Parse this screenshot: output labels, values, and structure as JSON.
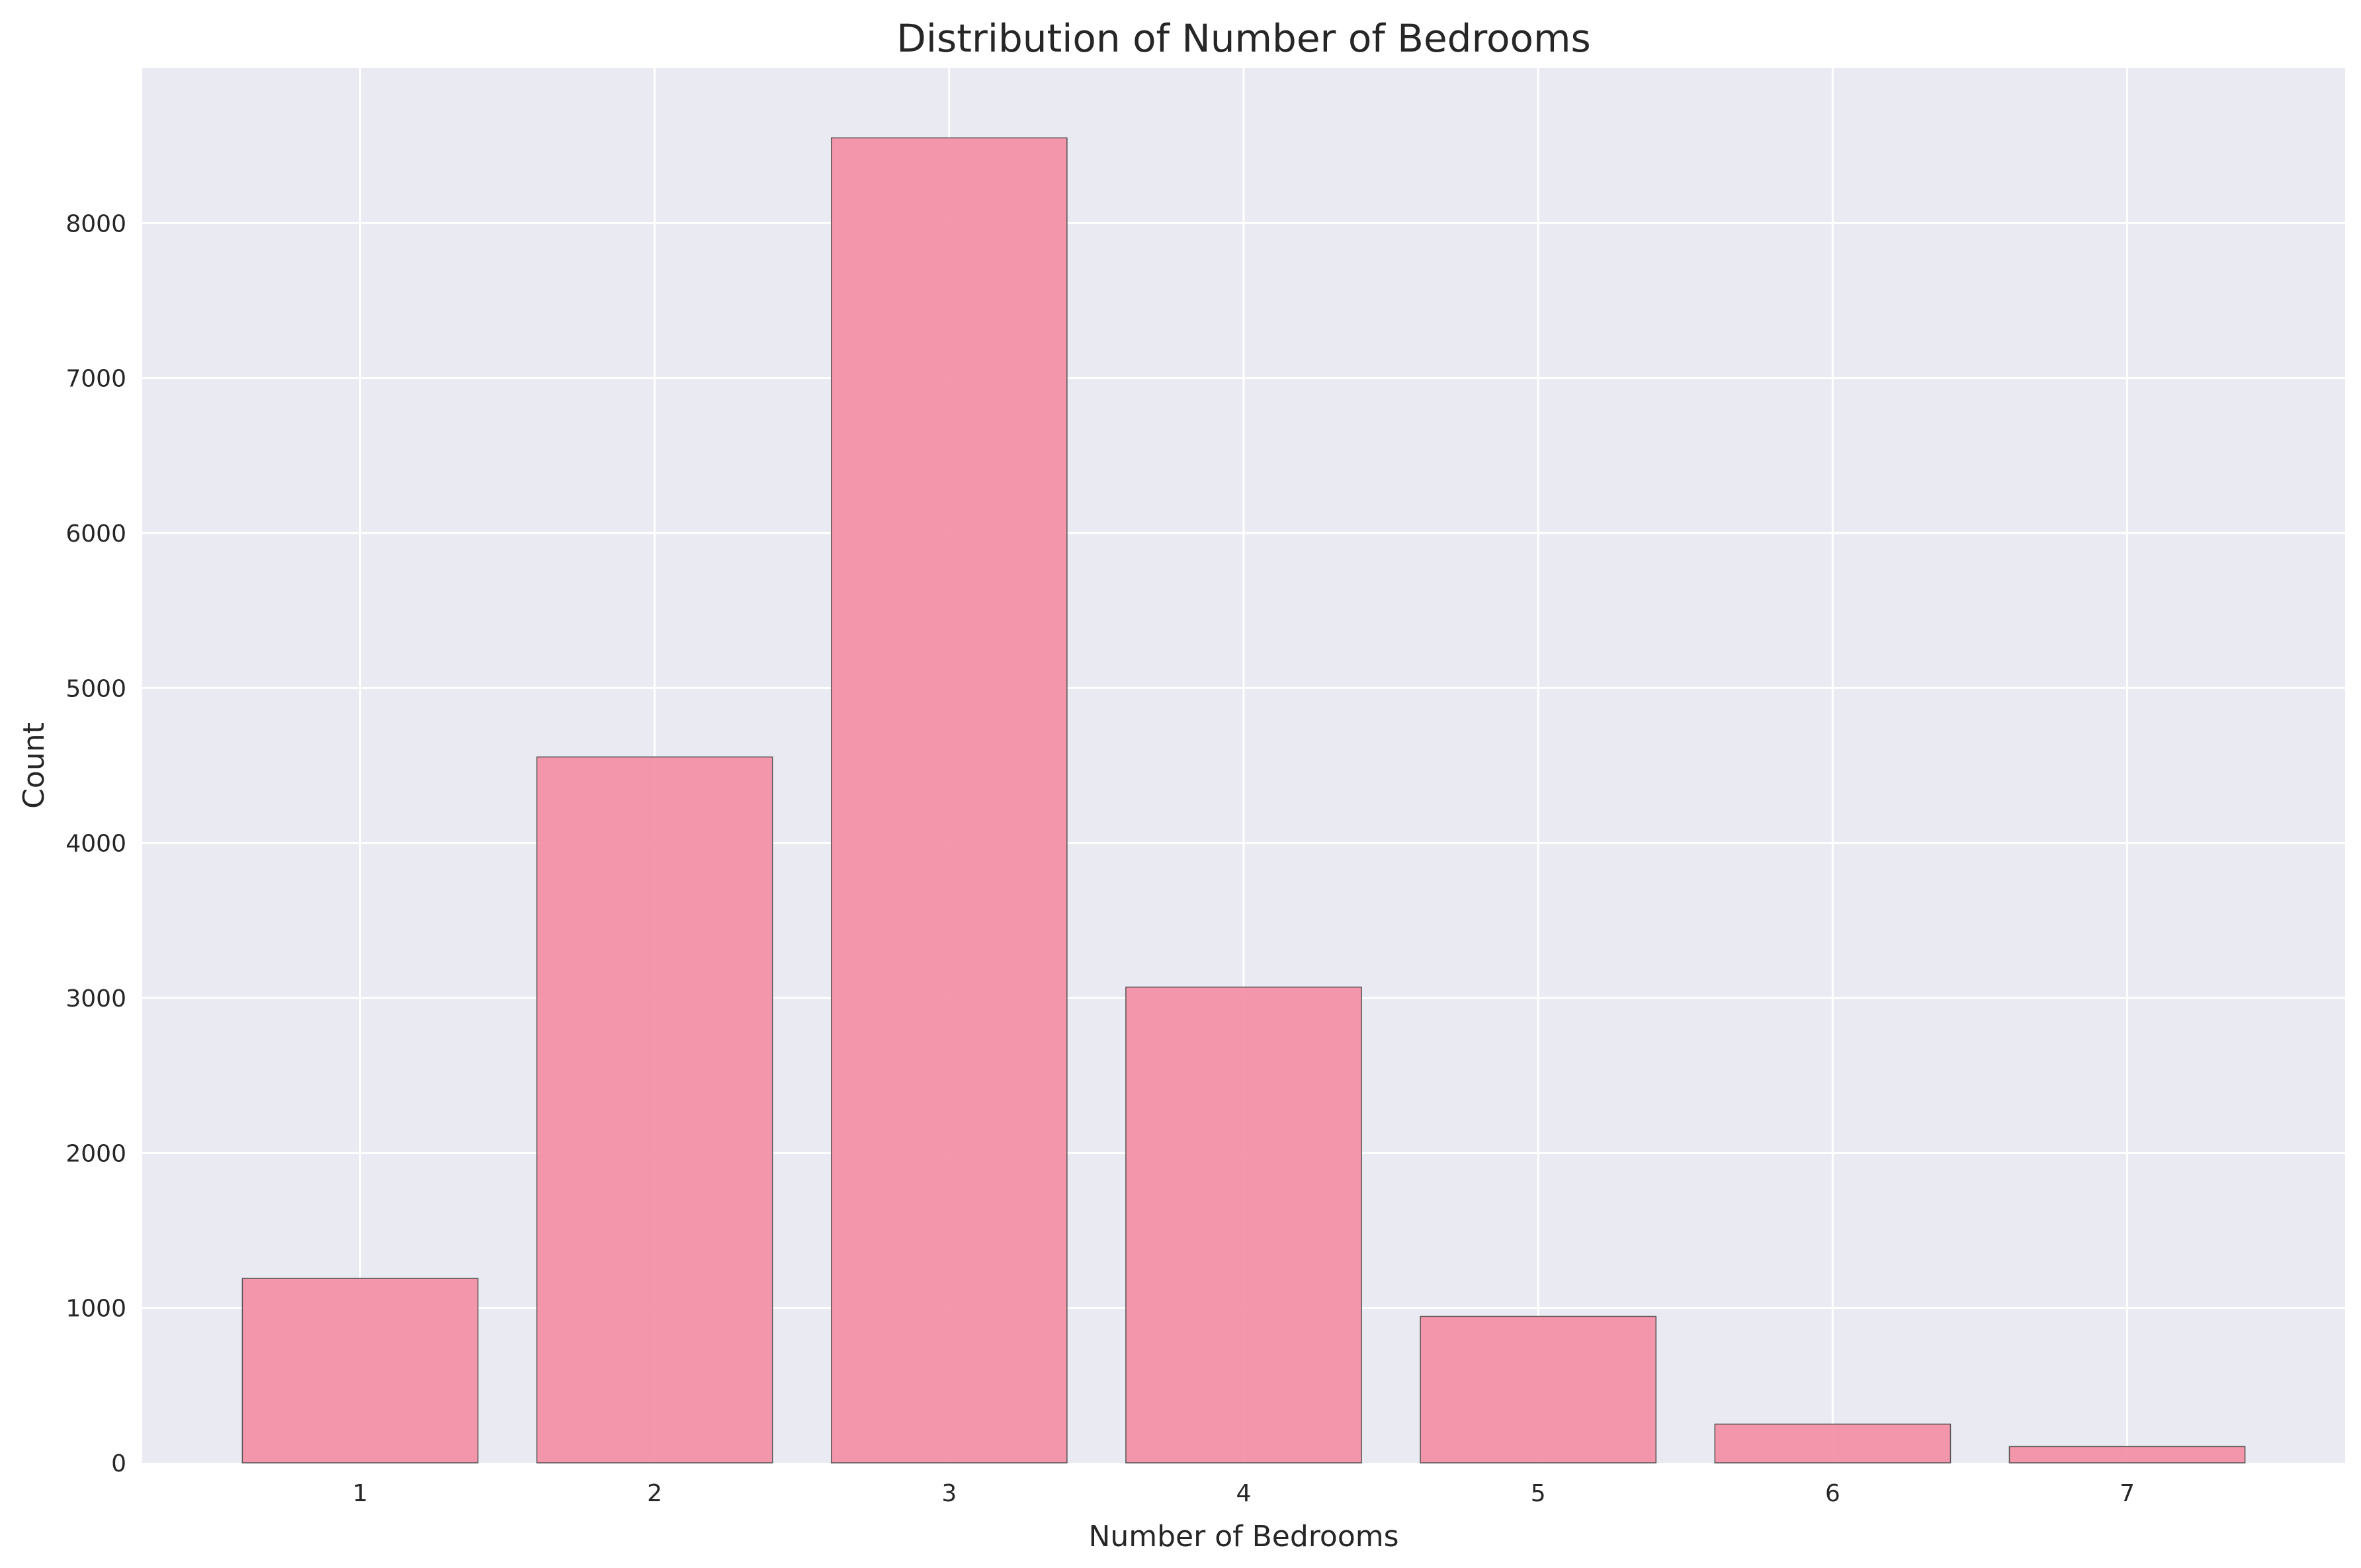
{
  "chart_data": {
    "type": "bar",
    "title": "Distribution of Number of Bedrooms",
    "xlabel": "Number of Bedrooms",
    "ylabel": "Count",
    "categories": [
      "1",
      "2",
      "3",
      "4",
      "5",
      "6",
      "7"
    ],
    "values": [
      1190,
      4555,
      8550,
      3070,
      945,
      250,
      105
    ],
    "xlim": [
      0.26,
      7.74
    ],
    "ylim": [
      0,
      9000
    ],
    "yticks": [
      0,
      1000,
      2000,
      3000,
      4000,
      5000,
      6000,
      7000,
      8000
    ],
    "grid": true,
    "legend": "none",
    "bar_color": "#f48ca3",
    "bar_edge_color": "#555555",
    "background_color": "#eaeaf2",
    "grid_color": "#ffffff"
  }
}
